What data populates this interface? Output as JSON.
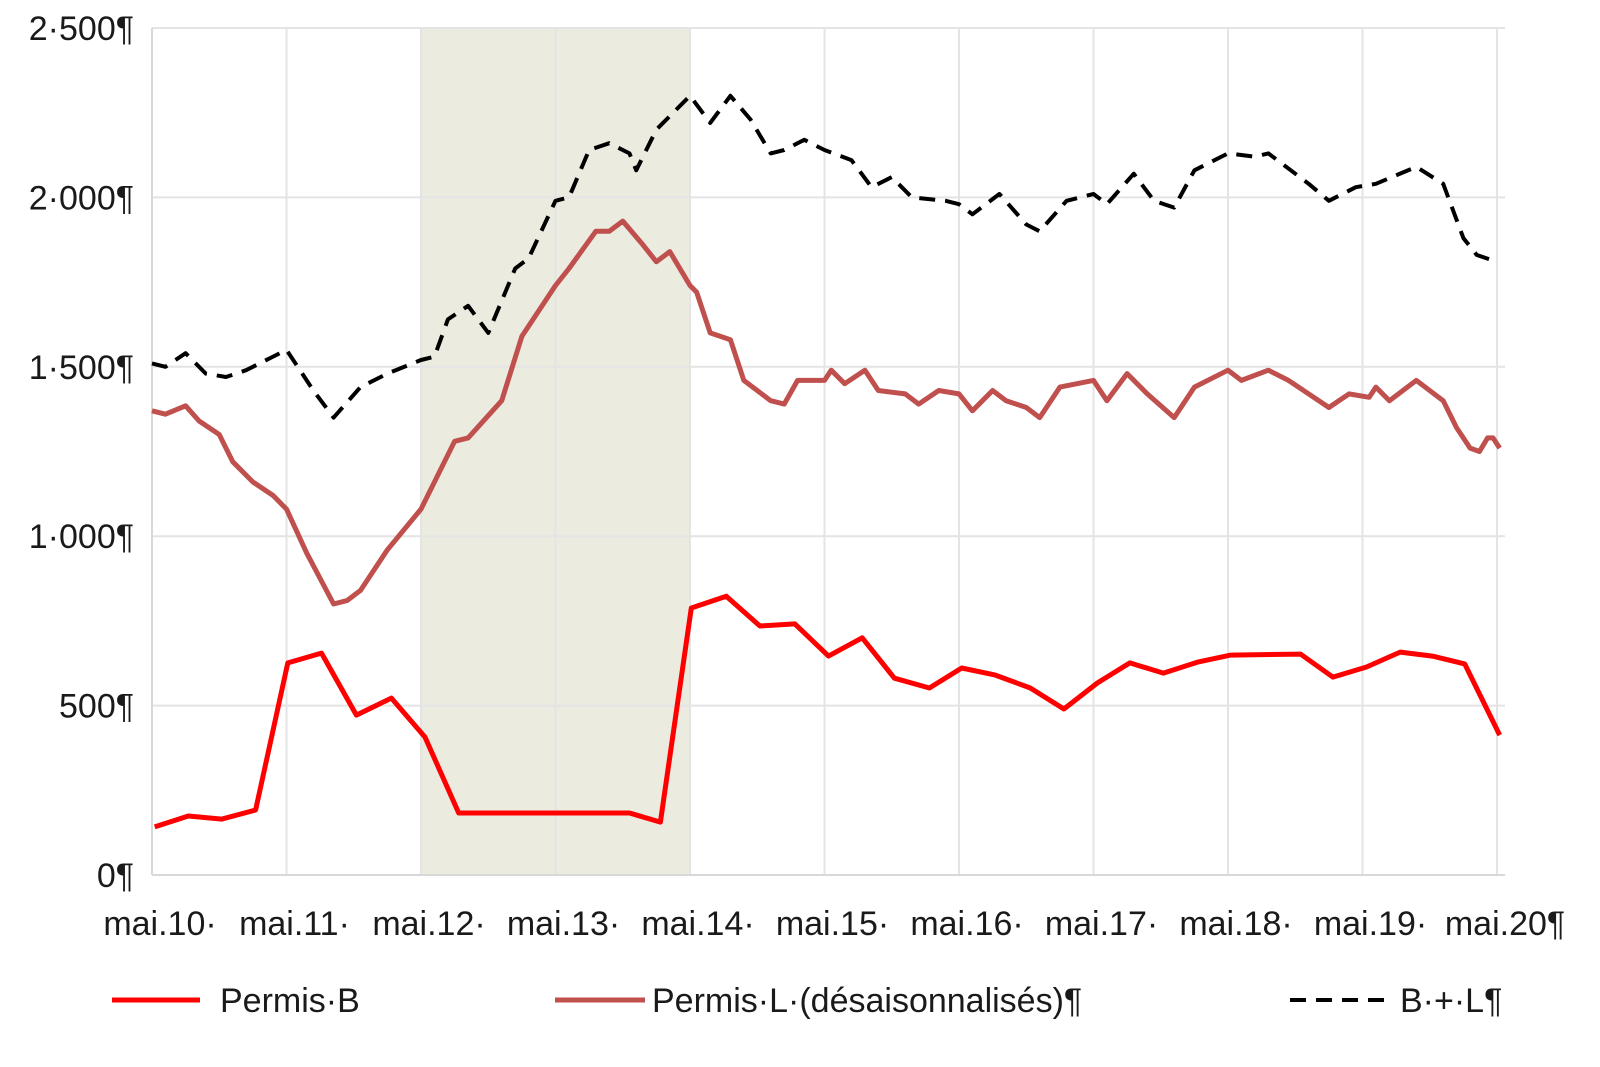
{
  "chart_data": {
    "type": "line",
    "title": "",
    "xlabel": "",
    "ylabel": "",
    "ylim": [
      0,
      2500
    ],
    "xlim": [
      0,
      10
    ],
    "grid": true,
    "legend_position": "bottom",
    "y_ticks": [
      {
        "value": 0,
        "label": "0¶"
      },
      {
        "value": 500,
        "label": "500¶"
      },
      {
        "value": 1000,
        "label": "1·000¶"
      },
      {
        "value": 1500,
        "label": "1·500¶"
      },
      {
        "value": 2000,
        "label": "2·000¶"
      },
      {
        "value": 2500,
        "label": "2·500¶"
      }
    ],
    "x_ticks": [
      {
        "value": 0,
        "label": "mai.10·"
      },
      {
        "value": 1,
        "label": "mai.11·"
      },
      {
        "value": 2,
        "label": "mai.12·"
      },
      {
        "value": 3,
        "label": "mai.13·"
      },
      {
        "value": 4,
        "label": "mai.14·"
      },
      {
        "value": 5,
        "label": "mai.15·"
      },
      {
        "value": 6,
        "label": "mai.16·"
      },
      {
        "value": 7,
        "label": "mai.17·"
      },
      {
        "value": 8,
        "label": "mai.18·"
      },
      {
        "value": 9,
        "label": "mai.19·"
      },
      {
        "value": 10,
        "label": "mai.20¶"
      }
    ],
    "shaded_range": [
      2,
      4
    ],
    "colors": {
      "shade": "#ecebe0",
      "grid": "#e4e4e4"
    },
    "series": [
      {
        "name": "Permis·B",
        "color": "#ff0000",
        "dash": false,
        "points": [
          [
            0.02,
            142
          ],
          [
            0.27,
            174
          ],
          [
            0.52,
            165
          ],
          [
            0.77,
            192
          ],
          [
            1.01,
            626
          ],
          [
            1.26,
            655
          ],
          [
            1.52,
            472
          ],
          [
            1.78,
            522
          ],
          [
            2.03,
            407
          ],
          [
            2.28,
            183
          ],
          [
            3.55,
            183
          ],
          [
            3.78,
            156
          ],
          [
            4.01,
            788
          ],
          [
            4.27,
            823
          ],
          [
            4.52,
            735
          ],
          [
            4.78,
            741
          ],
          [
            5.03,
            646
          ],
          [
            5.28,
            700
          ],
          [
            5.52,
            581
          ],
          [
            5.78,
            552
          ],
          [
            6.02,
            611
          ],
          [
            6.27,
            590
          ],
          [
            6.53,
            552
          ],
          [
            6.78,
            490
          ],
          [
            7.03,
            567
          ],
          [
            7.27,
            626
          ],
          [
            7.52,
            596
          ],
          [
            7.78,
            629
          ],
          [
            8.02,
            649
          ],
          [
            8.54,
            652
          ],
          [
            8.78,
            584
          ],
          [
            9.03,
            614
          ],
          [
            9.28,
            658
          ],
          [
            9.52,
            646
          ],
          [
            9.76,
            623
          ],
          [
            10.02,
            413
          ]
        ]
      },
      {
        "name": "Permis·L·(désaisonnalisés)¶",
        "color": "#c0504d",
        "dash": false,
        "points": [
          [
            0,
            1370
          ],
          [
            0.1,
            1360
          ],
          [
            0.25,
            1385
          ],
          [
            0.35,
            1340
          ],
          [
            0.5,
            1300
          ],
          [
            0.6,
            1220
          ],
          [
            0.75,
            1160
          ],
          [
            0.9,
            1120
          ],
          [
            1.0,
            1080
          ],
          [
            1.15,
            950
          ],
          [
            1.35,
            800
          ],
          [
            1.45,
            810
          ],
          [
            1.55,
            840
          ],
          [
            1.75,
            960
          ],
          [
            2.0,
            1080
          ],
          [
            2.25,
            1280
          ],
          [
            2.35,
            1290
          ],
          [
            2.6,
            1400
          ],
          [
            2.75,
            1590
          ],
          [
            3.0,
            1740
          ],
          [
            3.1,
            1790
          ],
          [
            3.3,
            1900
          ],
          [
            3.4,
            1900
          ],
          [
            3.5,
            1930
          ],
          [
            3.65,
            1860
          ],
          [
            3.75,
            1810
          ],
          [
            3.85,
            1840
          ],
          [
            4.0,
            1740
          ],
          [
            4.05,
            1720
          ],
          [
            4.15,
            1600
          ],
          [
            4.3,
            1580
          ],
          [
            4.4,
            1460
          ],
          [
            4.6,
            1400
          ],
          [
            4.7,
            1390
          ],
          [
            4.8,
            1460
          ],
          [
            5.0,
            1460
          ],
          [
            5.05,
            1490
          ],
          [
            5.15,
            1450
          ],
          [
            5.3,
            1490
          ],
          [
            5.4,
            1430
          ],
          [
            5.6,
            1420
          ],
          [
            5.7,
            1390
          ],
          [
            5.85,
            1430
          ],
          [
            6.0,
            1420
          ],
          [
            6.1,
            1370
          ],
          [
            6.25,
            1430
          ],
          [
            6.35,
            1400
          ],
          [
            6.5,
            1380
          ],
          [
            6.6,
            1350
          ],
          [
            6.75,
            1440
          ],
          [
            7.0,
            1460
          ],
          [
            7.1,
            1400
          ],
          [
            7.25,
            1480
          ],
          [
            7.4,
            1420
          ],
          [
            7.6,
            1350
          ],
          [
            7.75,
            1440
          ],
          [
            8.0,
            1490
          ],
          [
            8.1,
            1460
          ],
          [
            8.3,
            1490
          ],
          [
            8.45,
            1460
          ],
          [
            8.6,
            1420
          ],
          [
            8.75,
            1380
          ],
          [
            8.9,
            1420
          ],
          [
            9.05,
            1410
          ],
          [
            9.1,
            1440
          ],
          [
            9.2,
            1400
          ],
          [
            9.4,
            1460
          ],
          [
            9.6,
            1400
          ],
          [
            9.7,
            1320
          ],
          [
            9.8,
            1260
          ],
          [
            9.87,
            1250
          ],
          [
            9.93,
            1290
          ],
          [
            9.97,
            1290
          ],
          [
            10.02,
            1260
          ]
        ]
      },
      {
        "name": "B·+·L¶",
        "color": "#000000",
        "dash": true,
        "points": [
          [
            0,
            1510
          ],
          [
            0.1,
            1500
          ],
          [
            0.25,
            1540
          ],
          [
            0.4,
            1480
          ],
          [
            0.55,
            1470
          ],
          [
            0.7,
            1490
          ],
          [
            0.9,
            1530
          ],
          [
            1.0,
            1550
          ],
          [
            1.2,
            1430
          ],
          [
            1.35,
            1350
          ],
          [
            1.55,
            1440
          ],
          [
            1.75,
            1480
          ],
          [
            2.0,
            1520
          ],
          [
            2.1,
            1530
          ],
          [
            2.2,
            1640
          ],
          [
            2.35,
            1680
          ],
          [
            2.5,
            1600
          ],
          [
            2.7,
            1790
          ],
          [
            2.8,
            1820
          ],
          [
            3.0,
            1990
          ],
          [
            3.1,
            2000
          ],
          [
            3.25,
            2140
          ],
          [
            3.4,
            2160
          ],
          [
            3.55,
            2130
          ],
          [
            3.6,
            2080
          ],
          [
            3.75,
            2200
          ],
          [
            4.0,
            2300
          ],
          [
            4.15,
            2220
          ],
          [
            4.3,
            2300
          ],
          [
            4.45,
            2230
          ],
          [
            4.6,
            2130
          ],
          [
            4.7,
            2140
          ],
          [
            4.85,
            2170
          ],
          [
            5.0,
            2140
          ],
          [
            5.2,
            2110
          ],
          [
            5.35,
            2030
          ],
          [
            5.5,
            2060
          ],
          [
            5.65,
            2000
          ],
          [
            5.9,
            1990
          ],
          [
            6.0,
            1980
          ],
          [
            6.1,
            1950
          ],
          [
            6.3,
            2010
          ],
          [
            6.5,
            1920
          ],
          [
            6.6,
            1900
          ],
          [
            6.8,
            1990
          ],
          [
            7.0,
            2010
          ],
          [
            7.1,
            1980
          ],
          [
            7.3,
            2070
          ],
          [
            7.45,
            1990
          ],
          [
            7.6,
            1970
          ],
          [
            7.75,
            2080
          ],
          [
            8.0,
            2130
          ],
          [
            8.2,
            2120
          ],
          [
            8.3,
            2130
          ],
          [
            8.6,
            2040
          ],
          [
            8.75,
            1990
          ],
          [
            8.95,
            2030
          ],
          [
            9.1,
            2040
          ],
          [
            9.4,
            2090
          ],
          [
            9.6,
            2040
          ],
          [
            9.75,
            1880
          ],
          [
            9.85,
            1830
          ],
          [
            10.0,
            1810
          ]
        ]
      }
    ]
  }
}
